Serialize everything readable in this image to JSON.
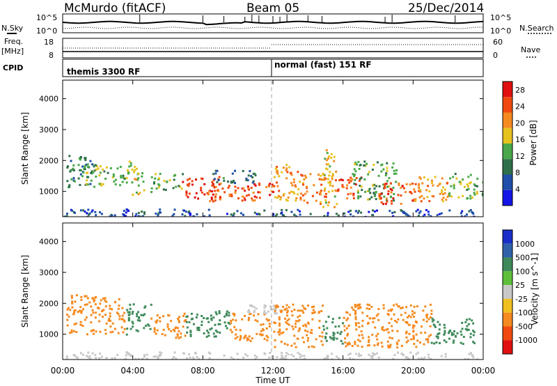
{
  "header": {
    "title": "McMurdo (fitACF)",
    "beam": "Beam 05",
    "date": "25/Dec/2014"
  },
  "noise_panel": {
    "left_label": "N.Sky",
    "left_ticks": [
      "10^5",
      "10^0"
    ],
    "right_ticks": [
      "10^5",
      "10^0"
    ],
    "right_label": "N.Search"
  },
  "freq_panel": {
    "left_label_lines": [
      "Freq.",
      "[MHz]"
    ],
    "left_ticks": [
      "18",
      "8"
    ],
    "right_ticks": [
      "60",
      "0"
    ],
    "right_label": "Nave"
  },
  "cpid_panel": {
    "label": "CPID",
    "segments": [
      "themis 3300 RF",
      "normal (fast) 151 RF"
    ]
  },
  "chart_data": [
    {
      "type": "heatmap",
      "name": "power",
      "ylabel": "Slant Range [km]",
      "ylim": [
        180,
        4600
      ],
      "y_ticks": [
        1000,
        2000,
        3000,
        4000
      ],
      "x_ticks": [
        "00:00",
        "04:00",
        "08:00",
        "12:00",
        "16:00",
        "20:00",
        "00:00"
      ],
      "xlim_hours": [
        0,
        24
      ],
      "colorbar": {
        "label": "Power [dB]",
        "ticks": [
          4,
          8,
          12,
          16,
          20,
          24,
          28
        ],
        "range": [
          0,
          30
        ],
        "colors": [
          "#1515e6",
          "#1f4fa8",
          "#2f6f4a",
          "#4aa84a",
          "#e6c21f",
          "#f58a20",
          "#f04a10",
          "#e01010"
        ]
      },
      "blobs": [
        {
          "t": [
            0.2,
            1.8
          ],
          "r": [
            1100,
            2200
          ],
          "level": 10
        },
        {
          "t": [
            1.0,
            3.5
          ],
          "r": [
            1200,
            1900
          ],
          "level": 14
        },
        {
          "t": [
            3.6,
            4.6
          ],
          "r": [
            900,
            2000
          ],
          "level": 16
        },
        {
          "t": [
            5.0,
            6.8
          ],
          "r": [
            1000,
            1600
          ],
          "level": 14
        },
        {
          "t": [
            6.8,
            9.0
          ],
          "r": [
            700,
            1500
          ],
          "level": 26
        },
        {
          "t": [
            8.6,
            12.0
          ],
          "r": [
            700,
            1300
          ],
          "level": 24
        },
        {
          "t": [
            8.5,
            11.0
          ],
          "r": [
            1300,
            1700
          ],
          "level": 8
        },
        {
          "t": [
            12.0,
            13.5
          ],
          "r": [
            700,
            1900
          ],
          "level": 20
        },
        {
          "t": [
            13.5,
            15.0
          ],
          "r": [
            600,
            1600
          ],
          "level": 22
        },
        {
          "t": [
            14.8,
            15.6
          ],
          "r": [
            500,
            2400
          ],
          "level": 18
        },
        {
          "t": [
            15.5,
            17.0
          ],
          "r": [
            800,
            1500
          ],
          "level": 24
        },
        {
          "t": [
            16.5,
            19.0
          ],
          "r": [
            700,
            2000
          ],
          "level": 12
        },
        {
          "t": [
            18.0,
            20.5
          ],
          "r": [
            600,
            1300
          ],
          "level": 24
        },
        {
          "t": [
            20.0,
            22.0
          ],
          "r": [
            700,
            1500
          ],
          "level": 20
        },
        {
          "t": [
            22.0,
            24.0
          ],
          "r": [
            800,
            1600
          ],
          "level": 14
        },
        {
          "t": [
            0.0,
            24.0
          ],
          "r": [
            200,
            450
          ],
          "level": 6
        }
      ]
    },
    {
      "type": "heatmap",
      "name": "velocity",
      "ylabel": "Slant Range [km]",
      "xlabel": "Time UT",
      "ylim": [
        180,
        4600
      ],
      "y_ticks": [
        1000,
        2000,
        3000,
        4000
      ],
      "x_ticks": [
        "00:00",
        "04:00",
        "08:00",
        "12:00",
        "16:00",
        "20:00",
        "00:00"
      ],
      "xlim_hours": [
        0,
        24
      ],
      "colorbar": {
        "label": "Velocity [m s^-1]",
        "ticks": [
          "1000",
          "500",
          "100",
          "25",
          "-25",
          "-100",
          "-500",
          "-1000"
        ],
        "colors": [
          "#1a2fc8",
          "#2f62a8",
          "#3f8a5a",
          "#5ec03a",
          "#c8c8c8",
          "#f0c020",
          "#f58a20",
          "#f04a10",
          "#e01010"
        ]
      },
      "blobs": [
        {
          "t": [
            0.2,
            3.5
          ],
          "r": [
            1000,
            2300
          ],
          "level": -300
        },
        {
          "t": [
            3.6,
            5.0
          ],
          "r": [
            1000,
            2000
          ],
          "level": 200
        },
        {
          "t": [
            5.0,
            7.0
          ],
          "r": [
            900,
            1700
          ],
          "level": -200
        },
        {
          "t": [
            7.0,
            9.5
          ],
          "r": [
            900,
            1800
          ],
          "level": 300
        },
        {
          "t": [
            9.5,
            11.8
          ],
          "r": [
            800,
            1700
          ],
          "level": -200
        },
        {
          "t": [
            10.5,
            12.5
          ],
          "r": [
            1700,
            2000
          ],
          "level": 0
        },
        {
          "t": [
            12.0,
            14.8
          ],
          "r": [
            600,
            2000
          ],
          "level": -300
        },
        {
          "t": [
            14.8,
            16.0
          ],
          "r": [
            700,
            1600
          ],
          "level": 300
        },
        {
          "t": [
            16.0,
            21.0
          ],
          "r": [
            600,
            2000
          ],
          "level": -300
        },
        {
          "t": [
            21.0,
            23.5
          ],
          "r": [
            700,
            1600
          ],
          "level": 300
        },
        {
          "t": [
            0.0,
            24.0
          ],
          "r": [
            200,
            450
          ],
          "level": 0
        }
      ]
    }
  ]
}
